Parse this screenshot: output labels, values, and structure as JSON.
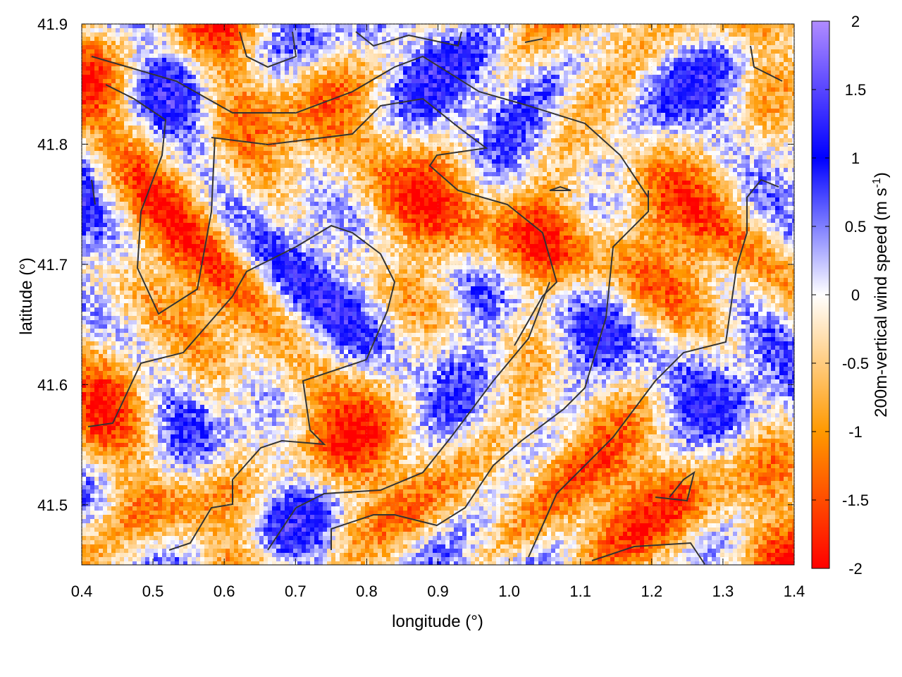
{
  "chart_data": {
    "type": "heatmap",
    "title": "",
    "xlabel": "longitude (°)",
    "ylabel": "latitude (°)",
    "xlim": [
      0.4,
      1.4
    ],
    "ylim": [
      41.45,
      41.9
    ],
    "x_ticks": [
      "0.4",
      "0.5",
      "0.6",
      "0.7",
      "0.8",
      "0.9",
      "1.0",
      "1.1",
      "1.2",
      "1.3",
      "1.4"
    ],
    "y_ticks": [
      "41.5",
      "41.6",
      "41.7",
      "41.8",
      "41.9"
    ],
    "colorbar": {
      "label": "200m-vertical wind speed (m s",
      "label_sup": "-1",
      "label_end": ")",
      "range": [
        -2,
        2
      ],
      "ticks": [
        "2",
        "1.5",
        "1",
        "0.5",
        "0",
        "-0.5",
        "-1",
        "-1.5",
        "-2"
      ],
      "colors": [
        "#ff0000",
        "#ff9900",
        "#ffffff",
        "#0000ff",
        "#b08cff"
      ]
    },
    "grid": true,
    "field": "200m-vertical wind speed, fine-scale alternating positive (blue) and negative (orange) cells",
    "contour_color": "#333333"
  }
}
